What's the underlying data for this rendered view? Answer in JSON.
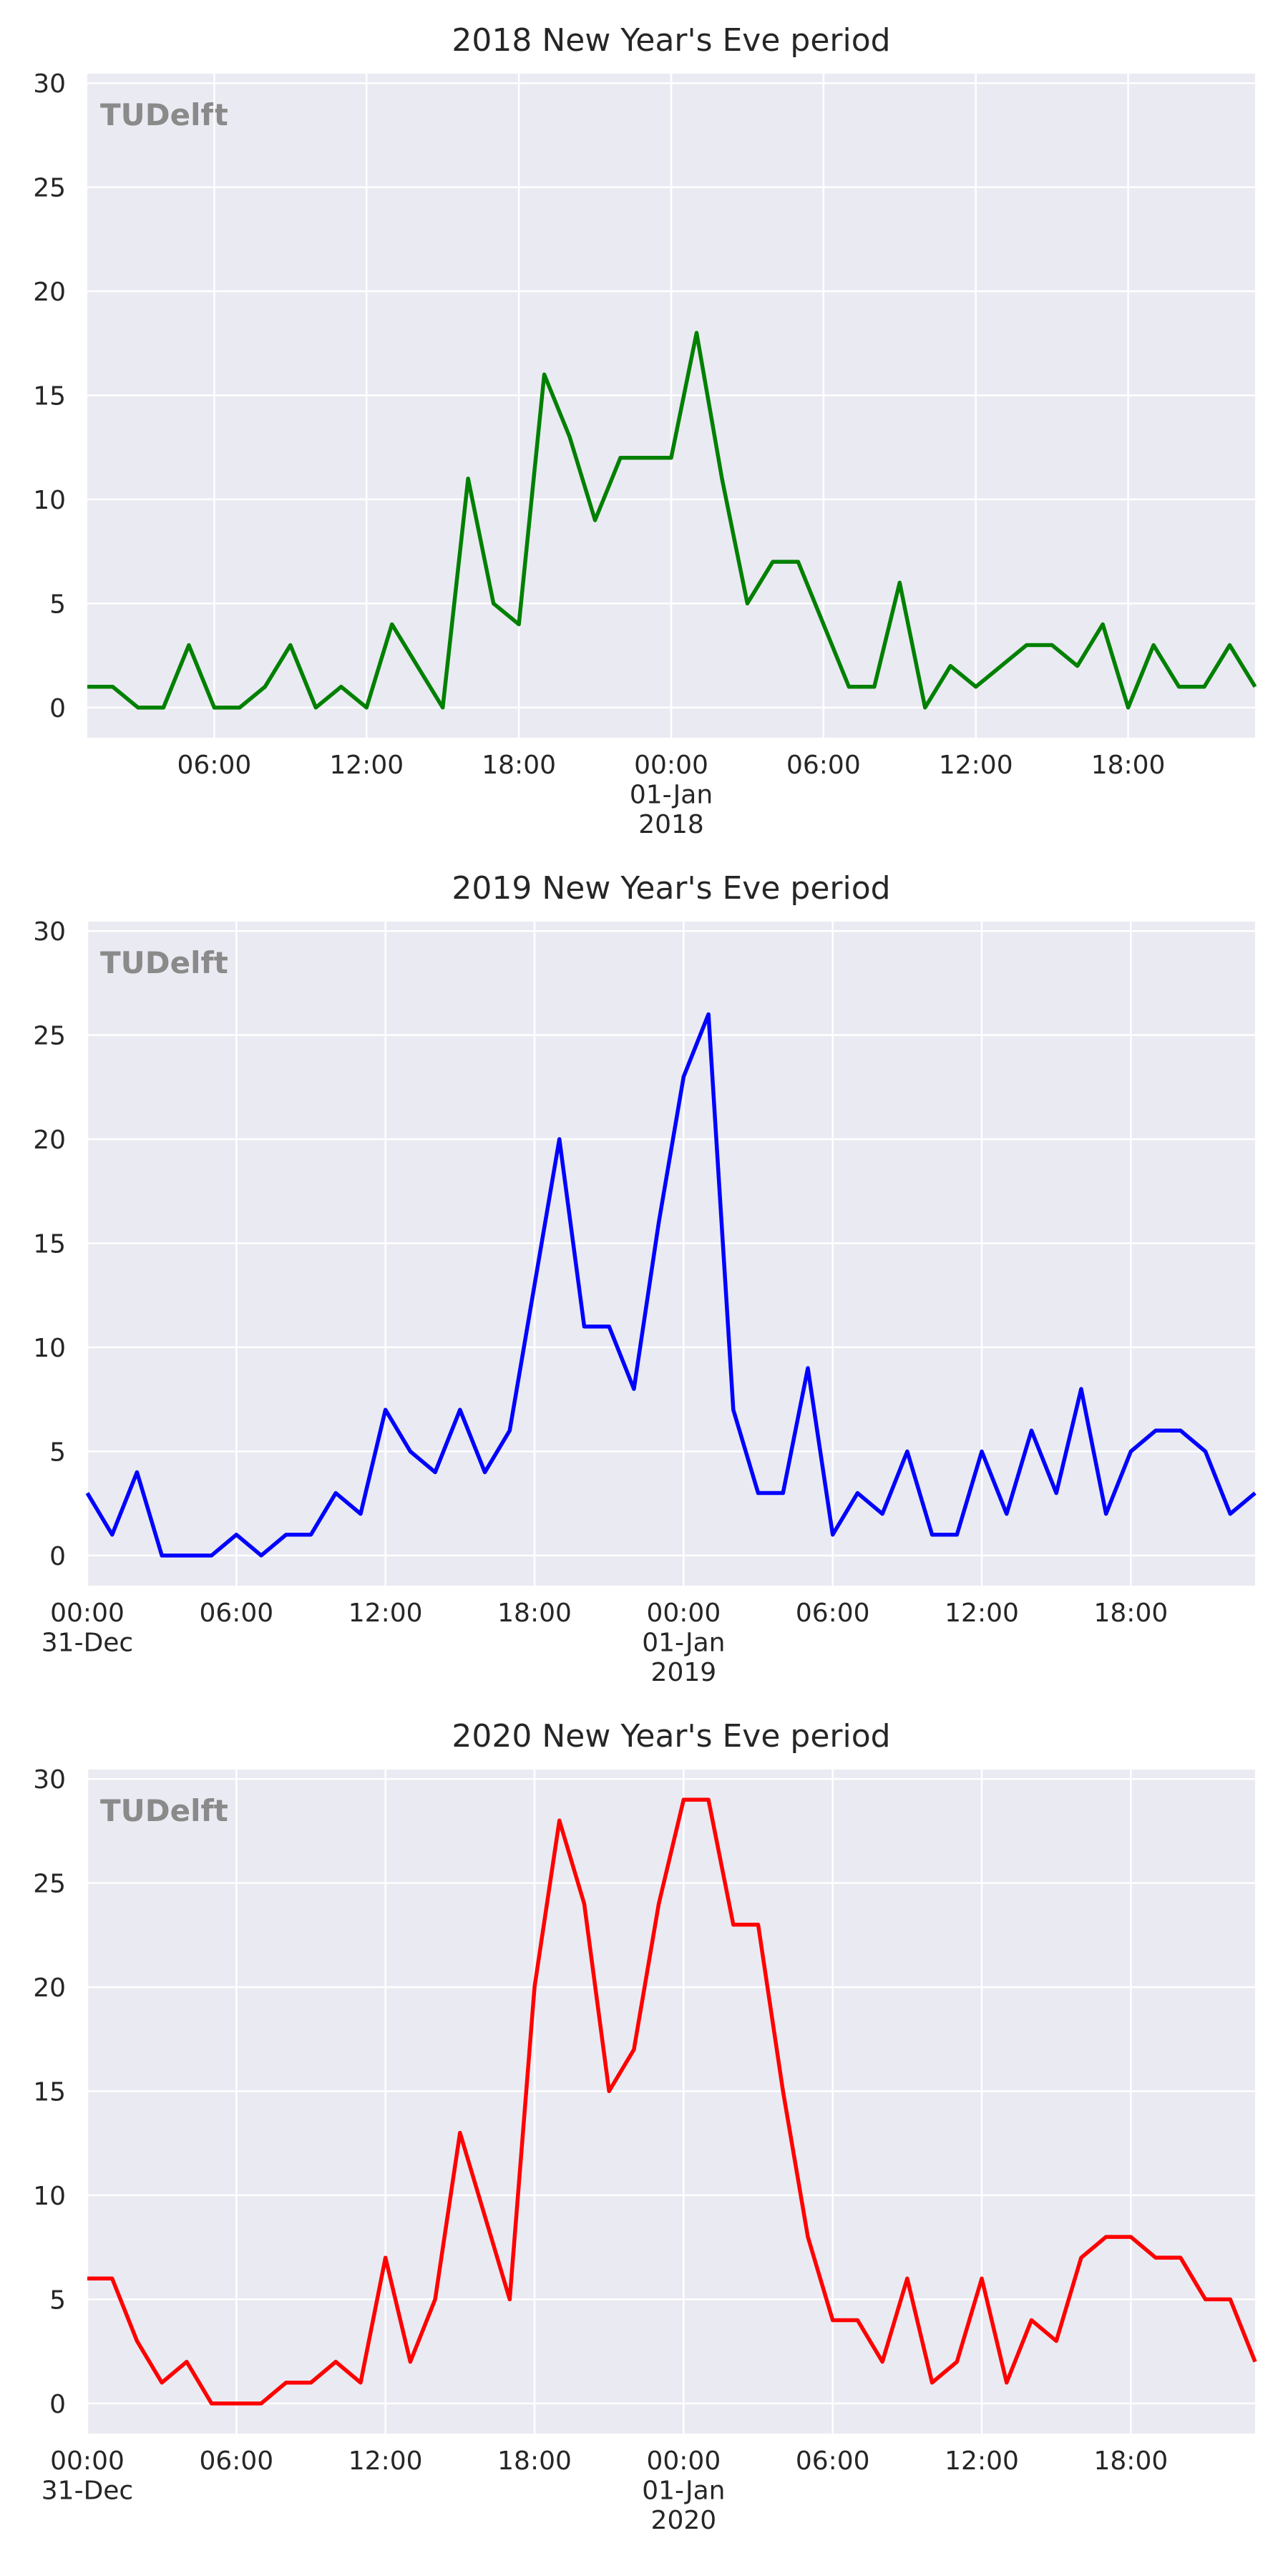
{
  "chart_data": [
    {
      "type": "line",
      "title": "2018 New Year's Eve period",
      "watermark": "TUDelft",
      "color": "#008000",
      "x": [
        "31-Dec 01:00",
        "31-Dec 02:00",
        "31-Dec 03:00",
        "31-Dec 04:00",
        "31-Dec 05:00",
        "31-Dec 06:00",
        "31-Dec 07:00",
        "31-Dec 08:00",
        "31-Dec 09:00",
        "31-Dec 10:00",
        "31-Dec 11:00",
        "31-Dec 12:00",
        "31-Dec 13:00",
        "31-Dec 14:00",
        "31-Dec 15:00",
        "31-Dec 16:00",
        "31-Dec 17:00",
        "31-Dec 18:00",
        "31-Dec 19:00",
        "31-Dec 20:00",
        "31-Dec 21:00",
        "31-Dec 22:00",
        "31-Dec 23:00",
        "01-Jan 00:00",
        "01-Jan 01:00",
        "01-Jan 02:00",
        "01-Jan 03:00",
        "01-Jan 04:00",
        "01-Jan 05:00",
        "01-Jan 06:00",
        "01-Jan 07:00",
        "01-Jan 08:00",
        "01-Jan 09:00",
        "01-Jan 10:00",
        "01-Jan 11:00",
        "01-Jan 12:00",
        "01-Jan 13:00",
        "01-Jan 14:00",
        "01-Jan 15:00",
        "01-Jan 16:00",
        "01-Jan 17:00",
        "01-Jan 18:00",
        "01-Jan 19:00",
        "01-Jan 20:00",
        "01-Jan 21:00",
        "01-Jan 22:00",
        "01-Jan 23:00"
      ],
      "values": [
        1,
        1,
        0,
        0,
        3,
        0,
        0,
        1,
        3,
        0,
        1,
        0,
        4,
        2,
        0,
        11,
        5,
        4,
        16,
        13,
        9,
        12,
        12,
        12,
        18,
        11,
        5,
        7,
        7,
        4,
        1,
        1,
        6,
        0,
        2,
        1,
        2,
        3,
        3,
        2,
        4,
        0,
        3,
        1,
        1,
        3,
        1
      ],
      "xlim": [
        "31-Dec 01:00",
        "01-Jan 23:00"
      ],
      "xticks": [
        {
          "value": "31-Dec 06:00",
          "label": "06:00"
        },
        {
          "value": "31-Dec 12:00",
          "label": "12:00"
        },
        {
          "value": "31-Dec 18:00",
          "label": "18:00"
        },
        {
          "value": "01-Jan 00:00",
          "label": "00:00\n01-Jan\n2018"
        },
        {
          "value": "01-Jan 06:00",
          "label": "06:00"
        },
        {
          "value": "01-Jan 12:00",
          "label": "12:00"
        },
        {
          "value": "01-Jan 18:00",
          "label": "18:00"
        }
      ],
      "ylim": [
        -1.45,
        30.45
      ],
      "yticks": [
        0,
        5,
        10,
        15,
        20,
        25,
        30
      ],
      "grid": true
    },
    {
      "type": "line",
      "title": "2019 New Year's Eve period",
      "watermark": "TUDelft",
      "color": "#0000ff",
      "x": [
        "31-Dec 00:00",
        "31-Dec 01:00",
        "31-Dec 02:00",
        "31-Dec 03:00",
        "31-Dec 04:00",
        "31-Dec 05:00",
        "31-Dec 06:00",
        "31-Dec 07:00",
        "31-Dec 08:00",
        "31-Dec 09:00",
        "31-Dec 10:00",
        "31-Dec 11:00",
        "31-Dec 12:00",
        "31-Dec 13:00",
        "31-Dec 14:00",
        "31-Dec 15:00",
        "31-Dec 16:00",
        "31-Dec 17:00",
        "31-Dec 18:00",
        "31-Dec 19:00",
        "31-Dec 20:00",
        "31-Dec 21:00",
        "31-Dec 22:00",
        "31-Dec 23:00",
        "01-Jan 00:00",
        "01-Jan 01:00",
        "01-Jan 02:00",
        "01-Jan 03:00",
        "01-Jan 04:00",
        "01-Jan 05:00",
        "01-Jan 06:00",
        "01-Jan 07:00",
        "01-Jan 08:00",
        "01-Jan 09:00",
        "01-Jan 10:00",
        "01-Jan 11:00",
        "01-Jan 12:00",
        "01-Jan 13:00",
        "01-Jan 14:00",
        "01-Jan 15:00",
        "01-Jan 16:00",
        "01-Jan 17:00",
        "01-Jan 18:00",
        "01-Jan 19:00",
        "01-Jan 20:00",
        "01-Jan 21:00",
        "01-Jan 22:00",
        "01-Jan 23:00"
      ],
      "values": [
        3,
        1,
        4,
        0,
        0,
        0,
        1,
        0,
        1,
        1,
        3,
        2,
        7,
        5,
        4,
        7,
        4,
        6,
        13,
        20,
        11,
        11,
        8,
        16,
        23,
        26,
        7,
        3,
        3,
        9,
        1,
        3,
        2,
        5,
        1,
        1,
        5,
        2,
        6,
        3,
        8,
        2,
        5,
        6,
        6,
        5,
        2,
        3
      ],
      "xlim": [
        "31-Dec 00:00",
        "01-Jan 23:00"
      ],
      "xticks": [
        {
          "value": "31-Dec 00:00",
          "label": "00:00\n31-Dec"
        },
        {
          "value": "31-Dec 06:00",
          "label": "06:00"
        },
        {
          "value": "31-Dec 12:00",
          "label": "12:00"
        },
        {
          "value": "31-Dec 18:00",
          "label": "18:00"
        },
        {
          "value": "01-Jan 00:00",
          "label": "00:00\n01-Jan\n2019"
        },
        {
          "value": "01-Jan 06:00",
          "label": "06:00"
        },
        {
          "value": "01-Jan 12:00",
          "label": "12:00"
        },
        {
          "value": "01-Jan 18:00",
          "label": "18:00"
        }
      ],
      "ylim": [
        -1.45,
        30.45
      ],
      "yticks": [
        0,
        5,
        10,
        15,
        20,
        25,
        30
      ],
      "grid": true
    },
    {
      "type": "line",
      "title": "2020 New Year's Eve period",
      "watermark": "TUDelft",
      "color": "#ff0000",
      "x": [
        "31-Dec 00:00",
        "31-Dec 01:00",
        "31-Dec 02:00",
        "31-Dec 03:00",
        "31-Dec 04:00",
        "31-Dec 05:00",
        "31-Dec 06:00",
        "31-Dec 07:00",
        "31-Dec 08:00",
        "31-Dec 09:00",
        "31-Dec 10:00",
        "31-Dec 11:00",
        "31-Dec 12:00",
        "31-Dec 13:00",
        "31-Dec 14:00",
        "31-Dec 15:00",
        "31-Dec 16:00",
        "31-Dec 17:00",
        "31-Dec 18:00",
        "31-Dec 19:00",
        "31-Dec 20:00",
        "31-Dec 21:00",
        "31-Dec 22:00",
        "31-Dec 23:00",
        "01-Jan 00:00",
        "01-Jan 01:00",
        "01-Jan 02:00",
        "01-Jan 03:00",
        "01-Jan 04:00",
        "01-Jan 05:00",
        "01-Jan 06:00",
        "01-Jan 07:00",
        "01-Jan 08:00",
        "01-Jan 09:00",
        "01-Jan 10:00",
        "01-Jan 11:00",
        "01-Jan 12:00",
        "01-Jan 13:00",
        "01-Jan 14:00",
        "01-Jan 15:00",
        "01-Jan 16:00",
        "01-Jan 17:00",
        "01-Jan 18:00",
        "01-Jan 19:00",
        "01-Jan 20:00",
        "01-Jan 21:00",
        "01-Jan 22:00",
        "01-Jan 23:00"
      ],
      "values": [
        6,
        6,
        3,
        1,
        2,
        0,
        0,
        0,
        1,
        1,
        2,
        1,
        7,
        2,
        5,
        13,
        9,
        5,
        20,
        28,
        24,
        15,
        17,
        24,
        29,
        29,
        23,
        23,
        15,
        8,
        4,
        4,
        2,
        6,
        1,
        2,
        6,
        1,
        4,
        3,
        7,
        8,
        8,
        7,
        7,
        5,
        5,
        2
      ],
      "xlim": [
        "31-Dec 00:00",
        "01-Jan 23:00"
      ],
      "xticks": [
        {
          "value": "31-Dec 00:00",
          "label": "00:00\n31-Dec"
        },
        {
          "value": "31-Dec 06:00",
          "label": "06:00"
        },
        {
          "value": "31-Dec 12:00",
          "label": "12:00"
        },
        {
          "value": "31-Dec 18:00",
          "label": "18:00"
        },
        {
          "value": "01-Jan 00:00",
          "label": "00:00\n01-Jan\n2020"
        },
        {
          "value": "01-Jan 06:00",
          "label": "06:00"
        },
        {
          "value": "01-Jan 12:00",
          "label": "12:00"
        },
        {
          "value": "01-Jan 18:00",
          "label": "18:00"
        }
      ],
      "ylim": [
        -1.45,
        30.45
      ],
      "yticks": [
        0,
        5,
        10,
        15,
        20,
        25,
        30
      ],
      "grid": true
    }
  ]
}
